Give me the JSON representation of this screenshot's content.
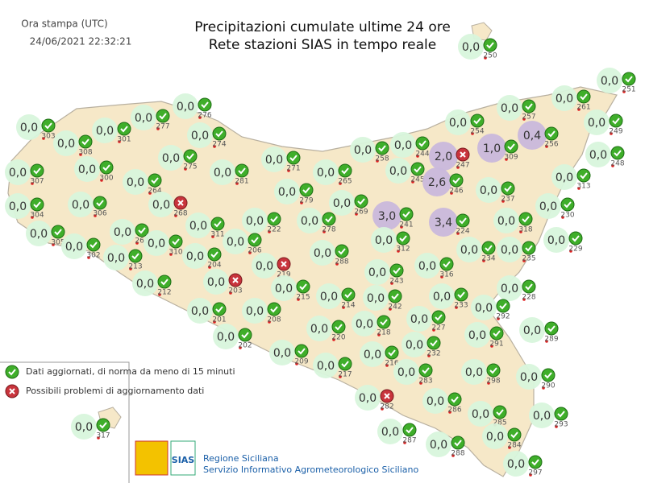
{
  "header": {
    "time_label": "Ora stampa (UTC)",
    "timestamp": "24/06/2021 22:32:21",
    "title_line1": "Precipitazioni cumulate ultime 24 ore",
    "title_line2": "Rete stazioni SIAS in tempo reale"
  },
  "stations": [
    {
      "value": "0,0",
      "id": "303",
      "status": "ok"
    },
    {
      "value": "0,0",
      "id": "308",
      "status": "ok"
    },
    {
      "value": "0,0",
      "id": "301",
      "status": "ok"
    },
    {
      "value": "0,0",
      "id": "277",
      "status": "ok"
    },
    {
      "value": "0,0",
      "id": "276",
      "status": "ok"
    },
    {
      "value": "0,0",
      "id": "274",
      "status": "ok"
    },
    {
      "value": "0,0",
      "id": "275",
      "status": "ok"
    },
    {
      "value": "0,0",
      "id": "300",
      "status": "ok"
    },
    {
      "value": "0,0",
      "id": "307",
      "status": "ok"
    },
    {
      "value": "0,0",
      "id": "304",
      "status": "ok"
    },
    {
      "value": "0,0",
      "id": "306",
      "status": "ok"
    },
    {
      "value": "0,0",
      "id": "264",
      "status": "ok"
    },
    {
      "value": "0,0",
      "id": "268",
      "status": "problem"
    },
    {
      "value": "0,0",
      "id": "305",
      "status": "ok"
    },
    {
      "value": "0,0",
      "id": "302",
      "status": "ok"
    },
    {
      "value": "0,0",
      "id": "267",
      "status": "ok"
    },
    {
      "value": "0,0",
      "id": "213",
      "status": "ok"
    },
    {
      "value": "0,0",
      "id": "310",
      "status": "ok"
    },
    {
      "value": "0,0",
      "id": "311",
      "status": "ok"
    },
    {
      "value": "0,0",
      "id": "204",
      "status": "ok"
    },
    {
      "value": "0,0",
      "id": "212",
      "status": "ok"
    },
    {
      "value": "0,0",
      "id": "203",
      "status": "problem"
    },
    {
      "value": "0,0",
      "id": "201",
      "status": "ok"
    },
    {
      "value": "0,0",
      "id": "202",
      "status": "ok"
    },
    {
      "value": "0,0",
      "id": "281",
      "status": "ok"
    },
    {
      "value": "0,0",
      "id": "271",
      "status": "ok"
    },
    {
      "value": "0,0",
      "id": "279",
      "status": "ok"
    },
    {
      "value": "0,0",
      "id": "265",
      "status": "ok"
    },
    {
      "value": "0,0",
      "id": "222",
      "status": "ok"
    },
    {
      "value": "0,0",
      "id": "206",
      "status": "ok"
    },
    {
      "value": "0,0",
      "id": "278",
      "status": "ok"
    },
    {
      "value": "0,0",
      "id": "219",
      "status": "problem"
    },
    {
      "value": "0,0",
      "id": "215",
      "status": "ok"
    },
    {
      "value": "0,0",
      "id": "288",
      "status": "ok"
    },
    {
      "value": "0,0",
      "id": "269",
      "status": "ok"
    },
    {
      "value": "0,0",
      "id": "258",
      "status": "ok"
    },
    {
      "value": "0,0",
      "id": "244",
      "status": "ok"
    },
    {
      "value": "0,0",
      "id": "245",
      "status": "ok"
    },
    {
      "value": "2,0",
      "id": "247",
      "status": "problem"
    },
    {
      "value": "2,6",
      "id": "246",
      "status": "ok"
    },
    {
      "value": "0,0",
      "id": "254",
      "status": "ok"
    },
    {
      "value": "1,0",
      "id": "309",
      "status": "ok"
    },
    {
      "value": "0,0",
      "id": "257",
      "status": "ok"
    },
    {
      "value": "0,4",
      "id": "256",
      "status": "ok"
    },
    {
      "value": "0,0",
      "id": "261",
      "status": "ok"
    },
    {
      "value": "0,0",
      "id": "251",
      "status": "ok"
    },
    {
      "value": "0,0",
      "id": "249",
      "status": "ok"
    },
    {
      "value": "0,0",
      "id": "248",
      "status": "ok"
    },
    {
      "value": "0,0",
      "id": "313",
      "status": "ok"
    },
    {
      "value": "0,0",
      "id": "250",
      "status": "ok"
    },
    {
      "value": "0,0",
      "id": "237",
      "status": "ok"
    },
    {
      "value": "0,0",
      "id": "230",
      "status": "ok"
    },
    {
      "value": "3,0",
      "id": "241",
      "status": "ok"
    },
    {
      "value": "3,4",
      "id": "224",
      "status": "ok"
    },
    {
      "value": "0,0",
      "id": "312",
      "status": "ok"
    },
    {
      "value": "0,0",
      "id": "318",
      "status": "ok"
    },
    {
      "value": "0,0",
      "id": "229",
      "status": "ok"
    },
    {
      "value": "0,0",
      "id": "234",
      "status": "ok"
    },
    {
      "value": "0,0",
      "id": "235",
      "status": "ok"
    },
    {
      "value": "0,0",
      "id": "316",
      "status": "ok"
    },
    {
      "value": "0,0",
      "id": "243",
      "status": "ok"
    },
    {
      "value": "0,0",
      "id": "228",
      "status": "ok"
    },
    {
      "value": "0,0",
      "id": "233",
      "status": "ok"
    },
    {
      "value": "0,0",
      "id": "214",
      "status": "ok"
    },
    {
      "value": "0,0",
      "id": "242",
      "status": "ok"
    },
    {
      "value": "0,0",
      "id": "208",
      "status": "ok"
    },
    {
      "value": "0,0",
      "id": "220",
      "status": "ok"
    },
    {
      "value": "0,0",
      "id": "218",
      "status": "ok"
    },
    {
      "value": "0,0",
      "id": "227",
      "status": "ok"
    },
    {
      "value": "0,0",
      "id": "292",
      "status": "ok"
    },
    {
      "value": "0,0",
      "id": "289",
      "status": "ok"
    },
    {
      "value": "0,0",
      "id": "291",
      "status": "ok"
    },
    {
      "value": "0,0",
      "id": "209",
      "status": "ok"
    },
    {
      "value": "0,0",
      "id": "217",
      "status": "ok"
    },
    {
      "value": "0,0",
      "id": "216",
      "status": "ok"
    },
    {
      "value": "0,0",
      "id": "232",
      "status": "ok"
    },
    {
      "value": "0,0",
      "id": "283",
      "status": "ok"
    },
    {
      "value": "0,0",
      "id": "298",
      "status": "ok"
    },
    {
      "value": "0,0",
      "id": "290",
      "status": "ok"
    },
    {
      "value": "0,0",
      "id": "282",
      "status": "problem"
    },
    {
      "value": "0,0",
      "id": "286",
      "status": "ok"
    },
    {
      "value": "0,0",
      "id": "285",
      "status": "ok"
    },
    {
      "value": "0,0",
      "id": "293",
      "status": "ok"
    },
    {
      "value": "0,0",
      "id": "287",
      "status": "ok"
    },
    {
      "value": "0,0",
      "id": "288",
      "status": "ok"
    },
    {
      "value": "0,0",
      "id": "284",
      "status": "ok"
    },
    {
      "value": "0,0",
      "id": "297",
      "status": "ok"
    },
    {
      "value": "0,0",
      "id": "317",
      "status": "ok"
    }
  ],
  "legend": {
    "ok": "Dati aggiornati, di norma da meno di 15 minuti",
    "problem": "Possibili problemi di aggiornamento dati"
  },
  "footer": {
    "logo": "SIAS",
    "org": "Regione Siciliana",
    "service": "Servizio Informativo Agrometeorologico Siciliano"
  }
}
